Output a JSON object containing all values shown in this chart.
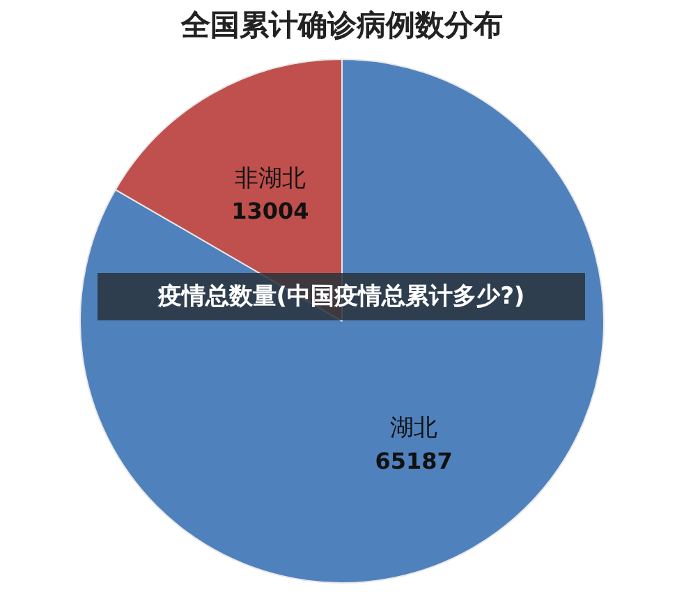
{
  "chart_data": {
    "type": "pie",
    "title": "全国累计确诊病例数分布",
    "categories": [
      "湖北",
      "非湖北"
    ],
    "values": [
      65187,
      13004
    ],
    "colors": [
      "#4f81bd",
      "#c0504d"
    ],
    "data_labels": true,
    "legend": false,
    "annotations": [
      "疫情总数量(中国疫情总累计多少?)"
    ]
  }
}
